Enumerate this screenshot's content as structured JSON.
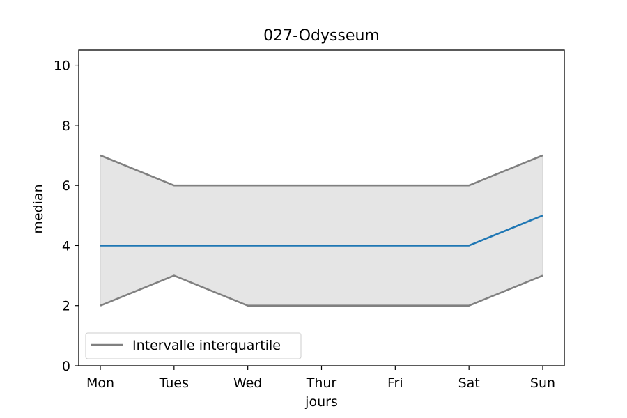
{
  "chart_data": {
    "type": "line",
    "title": "027-Odysseum",
    "xlabel": "jours",
    "ylabel": "median",
    "categories": [
      "Mon",
      "Tues",
      "Wed",
      "Thur",
      "Fri",
      "Sat",
      "Sun"
    ],
    "ylim": [
      0,
      10.5
    ],
    "yticks": [
      0,
      2,
      4,
      6,
      8,
      10
    ],
    "grid": false,
    "legend": {
      "placement": "lower-left",
      "entries": [
        "Intervalle interquartile"
      ]
    },
    "series": [
      {
        "name": "",
        "role": "median",
        "color": "#1f77b4",
        "values": [
          4,
          4,
          4,
          4,
          4,
          4,
          5
        ]
      },
      {
        "name": "Intervalle interquartile",
        "role": "q3",
        "color": "#808080",
        "values": [
          7,
          6,
          6,
          6,
          6,
          6,
          7
        ]
      },
      {
        "name": "",
        "role": "q1",
        "color": "#808080",
        "values": [
          2,
          3,
          2,
          2,
          2,
          2,
          3
        ]
      }
    ],
    "band_color": "#e5e5e5"
  }
}
